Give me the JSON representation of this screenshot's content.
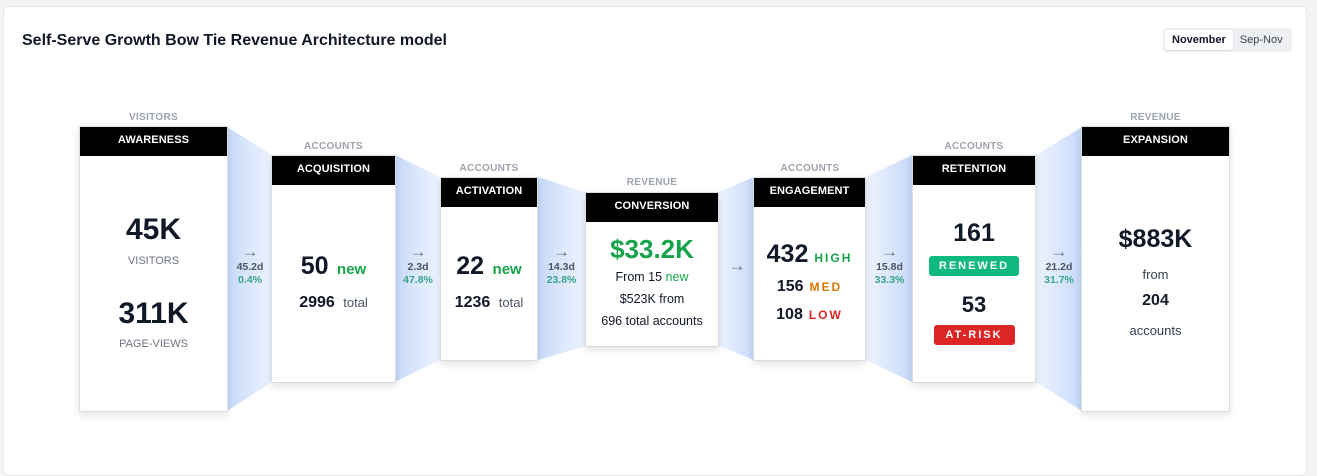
{
  "title": "Self-Serve Growth Bow Tie Revenue Architecture model",
  "toggle": {
    "options": [
      "November",
      "Sep-Nov"
    ],
    "active": "November"
  },
  "colors": {
    "header": "#000000",
    "green": "#16a34a",
    "med": "#d97706",
    "low": "#dc2626",
    "renewed": "#10b981",
    "at_risk": "#dc2626",
    "funnel": "#cfe0fb"
  },
  "stages": {
    "awareness": {
      "kind": "VISITORS",
      "header": "AWARENESS",
      "v1": "45K",
      "l1": "VISITORS",
      "v2": "311K",
      "l2": "PAGE-VIEWS"
    },
    "acquisition": {
      "kind": "ACCOUNTS",
      "header": "ACQUISITION",
      "new_value": "50",
      "new_label": "new",
      "total_value": "2996",
      "total_label": "total"
    },
    "activation": {
      "kind": "ACCOUNTS",
      "header": "ACTIVATION",
      "new_value": "22",
      "new_label": "new",
      "total_value": "1236",
      "total_label": "total"
    },
    "conversion": {
      "kind": "REVENUE",
      "header": "CONVERSION",
      "value": "$33.2K",
      "line1_prefix": "From 15",
      "line1_new": "new",
      "line2": "$523K from",
      "line3": "696 total accounts"
    },
    "engagement": {
      "kind": "ACCOUNTS",
      "header": "ENGAGEMENT",
      "high_value": "432",
      "high_label": "HIGH",
      "med_value": "156",
      "med_label": "MED",
      "low_value": "108",
      "low_label": "LOW"
    },
    "retention": {
      "kind": "ACCOUNTS",
      "header": "RETENTION",
      "renewed_value": "161",
      "renewed_label": "RENEWED",
      "atrisk_value": "53",
      "atrisk_label": "AT-RISK"
    },
    "expansion": {
      "kind": "REVENUE",
      "header": "EXPANSION",
      "value": "$883K",
      "from": "from",
      "accounts_value": "204",
      "accounts_label": "accounts"
    }
  },
  "transitions": [
    {
      "arrow": "→",
      "days": "45.2d",
      "pct": "0.4%"
    },
    {
      "arrow": "→",
      "days": "2.3d",
      "pct": "47.8%"
    },
    {
      "arrow": "→",
      "days": "14.3d",
      "pct": "23.8%"
    },
    {
      "arrow": "→",
      "days": "",
      "pct": ""
    },
    {
      "arrow": "→",
      "days": "15.8d",
      "pct": "33.3%"
    },
    {
      "arrow": "→",
      "days": "21.2d",
      "pct": "31.7%"
    }
  ]
}
